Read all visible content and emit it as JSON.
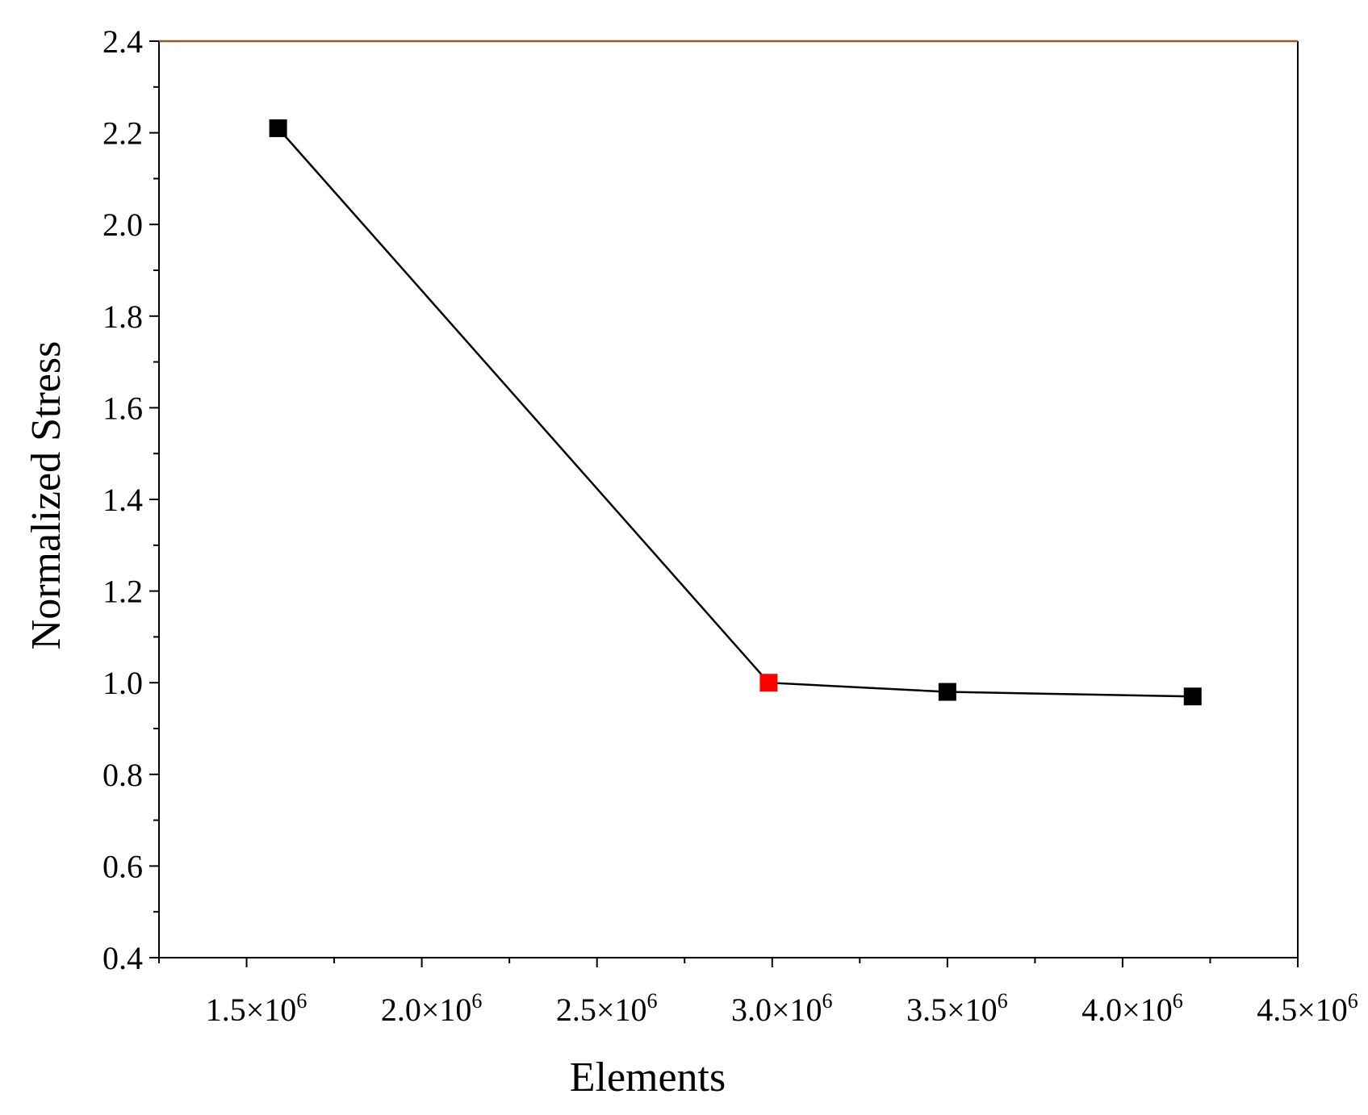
{
  "chart_data": {
    "type": "line",
    "title": "",
    "xlabel": "Elements",
    "ylabel": "Normalized Stress",
    "xlim": [
      1250000,
      4500000
    ],
    "ylim": [
      0.4,
      2.4
    ],
    "x_ticks": [
      {
        "value": 1500000,
        "mantissa": "1.5",
        "exp": "6"
      },
      {
        "value": 2000000,
        "mantissa": "2.0",
        "exp": "6"
      },
      {
        "value": 2500000,
        "mantissa": "2.5",
        "exp": "6"
      },
      {
        "value": 3000000,
        "mantissa": "3.0",
        "exp": "6"
      },
      {
        "value": 3500000,
        "mantissa": "3.5",
        "exp": "6"
      },
      {
        "value": 4000000,
        "mantissa": "4.0",
        "exp": "6"
      },
      {
        "value": 4500000,
        "mantissa": "4.5",
        "exp": "6"
      }
    ],
    "y_ticks": [
      "0.4",
      "0.6",
      "0.8",
      "1.0",
      "1.2",
      "1.4",
      "1.6",
      "1.8",
      "2.0",
      "2.2",
      "2.4"
    ],
    "grid": false,
    "series": [
      {
        "x": [
          1590000,
          2990000,
          3500000,
          4200000
        ],
        "y": [
          2.21,
          1.0,
          0.98,
          0.97
        ],
        "line_color": "#000000",
        "marker": "square",
        "marker_colors": [
          "#000000",
          "#ff0000",
          "#000000",
          "#000000"
        ]
      }
    ],
    "top_border_color": "#8b5a2b"
  }
}
